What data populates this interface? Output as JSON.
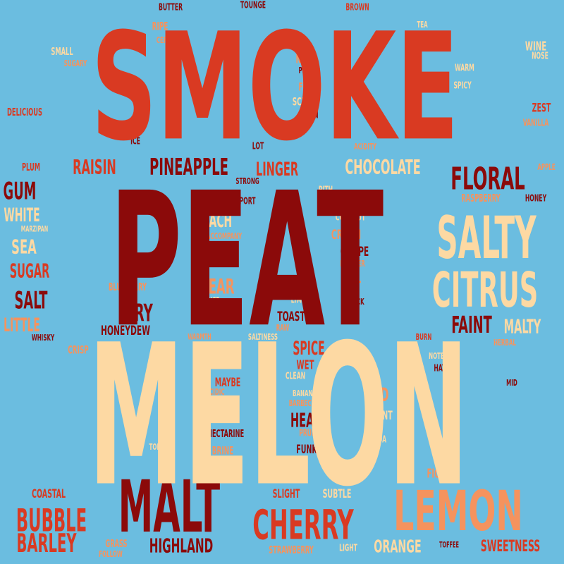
{
  "colors": {
    "background": "#6bbde0",
    "red": "#d93a22",
    "dark_red": "#8b0a0a",
    "cream": "#fdd9a3",
    "orange": "#f5935e"
  },
  "words": [
    {
      "text": "SMOKE",
      "color": "red"
    },
    {
      "text": "PEAT",
      "color": "dark_red"
    },
    {
      "text": "MELON",
      "color": "cream"
    },
    {
      "text": "MALT",
      "color": "dark_red"
    },
    {
      "text": "LEMON",
      "color": "orange"
    },
    {
      "text": "SALTY",
      "color": "cream"
    },
    {
      "text": "CITRUS",
      "color": "cream"
    },
    {
      "text": "CHERRY",
      "color": "red"
    },
    {
      "text": "FLORAL",
      "color": "dark_red"
    },
    {
      "text": "BUBBLE",
      "color": "red"
    },
    {
      "text": "BARLEY",
      "color": "red"
    },
    {
      "text": "PINEAPPLE",
      "color": "dark_red"
    },
    {
      "text": "CHOCOLATE",
      "color": "cream"
    },
    {
      "text": "RAISIN",
      "color": "red"
    },
    {
      "text": "LINGER",
      "color": "red"
    },
    {
      "text": "HIGHLAND",
      "color": "dark_red"
    },
    {
      "text": "ORANGE",
      "color": "cream"
    },
    {
      "text": "SWEETNESS",
      "color": "red"
    },
    {
      "text": "GUM",
      "color": "dark_red"
    },
    {
      "text": "WHITE",
      "color": "cream"
    },
    {
      "text": "SEA",
      "color": "cream"
    },
    {
      "text": "SUGAR",
      "color": "red"
    },
    {
      "text": "SALT",
      "color": "dark_red"
    },
    {
      "text": "LITTLE",
      "color": "orange"
    },
    {
      "text": "DRY",
      "color": "dark_red"
    },
    {
      "text": "PEACH",
      "color": "cream"
    },
    {
      "text": "PEAR",
      "color": "orange"
    },
    {
      "text": "FAINT",
      "color": "dark_red"
    },
    {
      "text": "MALTY",
      "color": "cream"
    },
    {
      "text": "SPICE",
      "color": "red"
    },
    {
      "text": "HEAT",
      "color": "dark_red"
    },
    {
      "text": "RED",
      "color": "orange"
    },
    {
      "text": "HONEYDEW",
      "color": "dark_red"
    },
    {
      "text": "TOAST",
      "color": "dark_red"
    },
    {
      "text": "GRAPE",
      "color": "dark_red"
    },
    {
      "text": "CUT",
      "color": "orange"
    },
    {
      "text": "CREAM",
      "color": "orange"
    },
    {
      "text": "MAYBE",
      "color": "red"
    },
    {
      "text": "WET",
      "color": "red"
    },
    {
      "text": "FUNK",
      "color": "dark_red"
    },
    {
      "text": "COASTAL",
      "color": "red"
    },
    {
      "text": "SLIGHT",
      "color": "red"
    },
    {
      "text": "SUBTLE",
      "color": "cream"
    },
    {
      "text": "FIG",
      "color": "orange"
    },
    {
      "text": "BRINE",
      "color": "orange"
    },
    {
      "text": "MINT",
      "color": "cream"
    },
    {
      "text": "NECTARINE",
      "color": "dark_red"
    },
    {
      "text": "CRISP",
      "color": "orange"
    },
    {
      "text": "BLUEBERRY",
      "color": "orange"
    },
    {
      "text": "RASPBERRY",
      "color": "orange"
    },
    {
      "text": "HONEY",
      "color": "dark_red"
    },
    {
      "text": "PLUM",
      "color": "red"
    },
    {
      "text": "SCENT",
      "color": "cream"
    },
    {
      "text": "FRESH",
      "color": "orange"
    },
    {
      "text": "NICE",
      "color": "orange"
    },
    {
      "text": "SMALL",
      "color": "cream"
    },
    {
      "text": "SUGARY",
      "color": "orange"
    },
    {
      "text": "WINE",
      "color": "cream"
    },
    {
      "text": "NOSE",
      "color": "cream"
    },
    {
      "text": "ZEST",
      "color": "red"
    },
    {
      "text": "VANILLA",
      "color": "orange"
    },
    {
      "text": "DELICIOUS",
      "color": "red"
    },
    {
      "text": "BUTTER",
      "color": "dark_red"
    },
    {
      "text": "TOUNGE",
      "color": "dark_red"
    },
    {
      "text": "BROWN",
      "color": "red"
    },
    {
      "text": "RIPE",
      "color": "orange"
    },
    {
      "text": "CEREAL",
      "color": "orange"
    },
    {
      "text": "TEA",
      "color": "cream"
    },
    {
      "text": "PEPPER",
      "color": "dark_red"
    },
    {
      "text": "WARM",
      "color": "cream"
    },
    {
      "text": "SPICY",
      "color": "cream"
    },
    {
      "text": "GREEN",
      "color": "dark_red"
    },
    {
      "text": "BIT",
      "color": "dark_red"
    },
    {
      "text": "ICE",
      "color": "dark_red"
    },
    {
      "text": "LOT",
      "color": "dark_red"
    },
    {
      "text": "ACIDITY",
      "color": "orange"
    },
    {
      "text": "APPLE",
      "color": "orange"
    },
    {
      "text": "STRONG",
      "color": "dark_red"
    },
    {
      "text": "PITH",
      "color": "cream"
    },
    {
      "text": "PORT",
      "color": "dark_red"
    },
    {
      "text": "COCONUT",
      "color": "cream"
    },
    {
      "text": "MARZIPAN",
      "color": "cream"
    },
    {
      "text": "ACCOMPANY",
      "color": "orange"
    },
    {
      "text": "POWDER",
      "color": "orange"
    },
    {
      "text": "LIME",
      "color": "cream"
    },
    {
      "text": "QUICK",
      "color": "dark_red"
    },
    {
      "text": "SAUCE",
      "color": "cream"
    },
    {
      "text": "RAW",
      "color": "orange"
    },
    {
      "text": "WHISKY",
      "color": "dark_red"
    },
    {
      "text": "WARMTH",
      "color": "orange"
    },
    {
      "text": "SALTINESS",
      "color": "cream"
    },
    {
      "text": "BURN",
      "color": "red"
    },
    {
      "text": "HERBAL",
      "color": "orange"
    },
    {
      "text": "NOTE",
      "color": "cream"
    },
    {
      "text": "HAY",
      "color": "dark_red"
    },
    {
      "text": "CLEAN",
      "color": "cream"
    },
    {
      "text": "ACIDIC",
      "color": "orange"
    },
    {
      "text": "BANANA",
      "color": "cream"
    },
    {
      "text": "BARBECUE",
      "color": "orange"
    },
    {
      "text": "PRUNE",
      "color": "orange"
    },
    {
      "text": "COCOA",
      "color": "cream"
    },
    {
      "text": "MID",
      "color": "dark_red"
    },
    {
      "text": "TON",
      "color": "cream"
    },
    {
      "text": "GRASS",
      "color": "orange"
    },
    {
      "text": "FOLLOW",
      "color": "orange"
    },
    {
      "text": "STRAWBERRY",
      "color": "orange"
    },
    {
      "text": "LIGHT",
      "color": "cream"
    },
    {
      "text": "TOFFEE",
      "color": "dark_red"
    }
  ]
}
